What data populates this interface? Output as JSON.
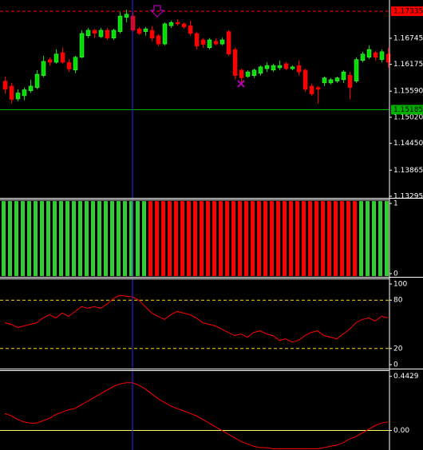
{
  "chart_data": [
    {
      "type": "candlestick",
      "open": [
        1.1581,
        1.157,
        1.1542,
        1.1549,
        1.156,
        1.1567,
        1.1593,
        1.1628,
        1.1622,
        1.1643,
        1.1622,
        1.1605,
        1.1633,
        1.168,
        1.1692,
        1.1678,
        1.1692,
        1.1675,
        1.1689,
        1.172,
        1.1723,
        1.1695,
        1.1689,
        1.1692,
        1.168,
        1.1662,
        1.1702,
        1.1709,
        1.1706,
        1.1702,
        1.1685,
        1.1671,
        1.1654,
        1.1668,
        1.1662,
        1.1689,
        1.165,
        1.1605,
        1.1591,
        1.1593,
        1.1598,
        1.1608,
        1.1605,
        1.161,
        1.1619,
        1.1608,
        1.1615,
        1.1605,
        1.157,
        1.1567,
        1.1577,
        1.1577,
        1.1581,
        1.1584,
        1.1594,
        1.1581,
        1.1626,
        1.1633,
        1.1643,
        1.1628,
        1.164
      ],
      "high": [
        1.1591,
        1.1577,
        1.1563,
        1.1567,
        1.1584,
        1.1605,
        1.1636,
        1.1633,
        1.165,
        1.1654,
        1.1628,
        1.1636,
        1.1692,
        1.1697,
        1.1695,
        1.1697,
        1.1697,
        1.1695,
        1.1732,
        1.1737,
        1.1732,
        1.1699,
        1.1699,
        1.1701,
        1.1683,
        1.1709,
        1.1713,
        1.1716,
        1.1709,
        1.1713,
        1.1689,
        1.1675,
        1.1675,
        1.1675,
        1.1676,
        1.1692,
        1.1654,
        1.1608,
        1.1605,
        1.1608,
        1.1615,
        1.1622,
        1.1619,
        1.1626,
        1.1622,
        1.1615,
        1.1626,
        1.1608,
        1.1575,
        1.157,
        1.1591,
        1.1588,
        1.1591,
        1.1605,
        1.1601,
        1.1633,
        1.1645,
        1.1659,
        1.1647,
        1.165,
        1.1654
      ],
      "low": [
        1.1553,
        1.1532,
        1.1537,
        1.1539,
        1.1555,
        1.1563,
        1.1589,
        1.1615,
        1.1619,
        1.1619,
        1.1601,
        1.1598,
        1.1631,
        1.1675,
        1.1675,
        1.1675,
        1.1671,
        1.1671,
        1.1685,
        1.1709,
        1.1689,
        1.1682,
        1.168,
        1.1668,
        1.1657,
        1.1659,
        1.1697,
        1.1702,
        1.1695,
        1.168,
        1.165,
        1.1654,
        1.165,
        1.1659,
        1.1659,
        1.1636,
        1.1584,
        1.1575,
        1.1588,
        1.1588,
        1.1593,
        1.1601,
        1.1601,
        1.1605,
        1.1605,
        1.1605,
        1.1593,
        1.1558,
        1.1549,
        1.1532,
        1.157,
        1.1574,
        1.1577,
        1.1577,
        1.1541,
        1.1577,
        1.1622,
        1.1629,
        1.1626,
        1.1622,
        1.161
      ],
      "close": [
        1.1563,
        1.1541,
        1.1555,
        1.1562,
        1.157,
        1.1596,
        1.1624,
        1.1622,
        1.164,
        1.1622,
        1.1607,
        1.1633,
        1.1685,
        1.1692,
        1.1685,
        1.1692,
        1.1675,
        1.1692,
        1.1723,
        1.1727,
        1.1692,
        1.1685,
        1.1695,
        1.1675,
        1.1662,
        1.1706,
        1.1709,
        1.1706,
        1.1699,
        1.1685,
        1.1657,
        1.1661,
        1.1671,
        1.1662,
        1.1671,
        1.164,
        1.1593,
        1.1588,
        1.1601,
        1.1605,
        1.1612,
        1.1615,
        1.1615,
        1.1615,
        1.1608,
        1.1612,
        1.1601,
        1.1563,
        1.1553,
        1.1563,
        1.1588,
        1.1584,
        1.1588,
        1.1601,
        1.1567,
        1.1628,
        1.164,
        1.165,
        1.1633,
        1.1645,
        1.1622
      ],
      "up_color": "#00dd00",
      "down_color": "#ff0000",
      "ylim": [
        1.1326,
        1.1758
      ],
      "yticks": [
        1.16745,
        1.16175,
        {
          "value": 1.1559,
          "label": "1.15590"
        },
        {
          "value": 1.1502,
          "label": "1.15020"
        },
        {
          "value": 1.1445,
          "label": "1.14450"
        },
        1.13865,
        1.13295
      ],
      "levels": [
        {
          "value": 1.17335,
          "label": "1.17335",
          "color": "#ff0000",
          "dashed": true
        },
        {
          "value": 1.15185,
          "label": "1.15185",
          "color": "#00b000",
          "dashed": false
        }
      ]
    },
    {
      "type": "bar",
      "values": [
        1,
        1,
        1,
        1,
        1,
        1,
        1,
        1,
        1,
        1,
        1,
        1,
        1,
        1,
        1,
        1,
        1,
        1,
        1,
        1,
        1,
        1,
        1,
        1,
        1,
        1,
        1,
        1,
        1,
        1,
        1,
        1,
        1,
        1,
        1,
        1,
        1,
        1,
        1,
        1,
        1,
        1,
        1,
        1,
        1,
        1,
        1,
        1,
        1,
        1,
        1,
        1,
        1,
        1,
        1,
        1,
        1,
        1,
        1,
        1,
        1
      ],
      "colors": [
        "#32cd32",
        "#32cd32",
        "#32cd32",
        "#32cd32",
        "#32cd32",
        "#32cd32",
        "#32cd32",
        "#32cd32",
        "#32cd32",
        "#32cd32",
        "#32cd32",
        "#32cd32",
        "#32cd32",
        "#32cd32",
        "#32cd32",
        "#32cd32",
        "#32cd32",
        "#32cd32",
        "#32cd32",
        "#32cd32",
        "#32cd32",
        "#32cd32",
        "#32cd32",
        "#ff0000",
        "#ff0000",
        "#ff0000",
        "#ff0000",
        "#ff0000",
        "#ff0000",
        "#ff0000",
        "#ff0000",
        "#ff0000",
        "#ff0000",
        "#ff0000",
        "#ff0000",
        "#ff0000",
        "#ff0000",
        "#ff0000",
        "#ff0000",
        "#ff0000",
        "#ff0000",
        "#ff0000",
        "#ff0000",
        "#ff0000",
        "#ff0000",
        "#ff0000",
        "#ff0000",
        "#ff0000",
        "#ff0000",
        "#ff0000",
        "#ff0000",
        "#ff0000",
        "#ff0000",
        "#ff0000",
        "#ff0000",
        "#ff0000",
        "#32cd32",
        "#32cd32",
        "#32cd32",
        "#32cd32",
        "#32cd32"
      ],
      "ylim": [
        0,
        1
      ],
      "yticks": [
        1,
        0
      ]
    },
    {
      "type": "line",
      "values": [
        52,
        50,
        46,
        48,
        50,
        52,
        58,
        62,
        58,
        64,
        60,
        66,
        72,
        70,
        72,
        70,
        75,
        82,
        86,
        85,
        84,
        80,
        72,
        64,
        60,
        56,
        62,
        66,
        64,
        62,
        58,
        52,
        50,
        48,
        44,
        40,
        36,
        38,
        34,
        40,
        42,
        38,
        36,
        30,
        32,
        28,
        30,
        36,
        40,
        42,
        36,
        34,
        32,
        38,
        44,
        52,
        56,
        58,
        54,
        60,
        58
      ],
      "color": "#ff0000",
      "ylim": [
        0,
        100
      ],
      "yticks": [
        100,
        80,
        20,
        0
      ],
      "levels": [
        {
          "value": 80,
          "color": "#ffd700",
          "dashed": true
        },
        {
          "value": 20,
          "color": "#ffd700",
          "dashed": true
        }
      ]
    },
    {
      "type": "line",
      "values": [
        0.14,
        0.12,
        0.09,
        0.07,
        0.06,
        0.06,
        0.08,
        0.1,
        0.13,
        0.15,
        0.17,
        0.18,
        0.21,
        0.24,
        0.27,
        0.3,
        0.33,
        0.36,
        0.38,
        0.39,
        0.39,
        0.37,
        0.34,
        0.3,
        0.26,
        0.23,
        0.2,
        0.18,
        0.16,
        0.14,
        0.12,
        0.09,
        0.06,
        0.03,
        0.0,
        -0.03,
        -0.06,
        -0.09,
        -0.11,
        -0.13,
        -0.14,
        -0.14,
        -0.15,
        -0.15,
        -0.15,
        -0.15,
        -0.15,
        -0.15,
        -0.15,
        -0.15,
        -0.14,
        -0.13,
        -0.12,
        -0.1,
        -0.07,
        -0.05,
        -0.02,
        0.01,
        0.04,
        0.06,
        0.07
      ],
      "color": "#ff0000",
      "ylim": [
        -0.16,
        0.48
      ],
      "yticks": [
        0.4429,
        {
          "value": 0,
          "label": "0.00"
        }
      ],
      "levels": [
        {
          "value": 0,
          "color": "#ffff66",
          "dashed": false
        }
      ]
    }
  ]
}
